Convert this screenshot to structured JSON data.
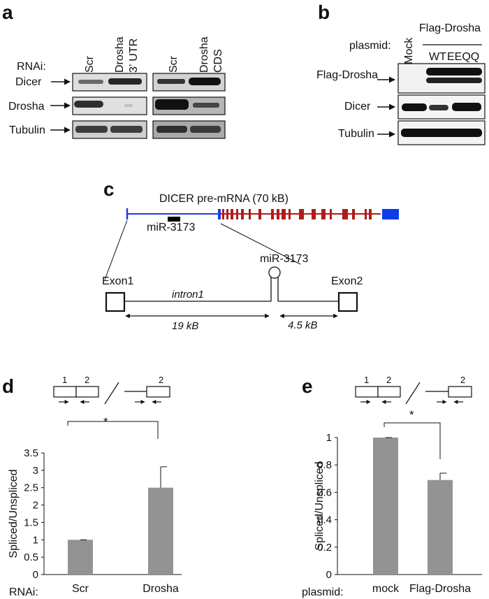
{
  "panel_a": {
    "letter": "a",
    "rnai_label": "RNAi:",
    "lanes": [
      "Scr",
      "Drosha",
      "3’ UTR",
      "Scr",
      "Drosha",
      "CDS"
    ],
    "rows": [
      "Dicer",
      "Drosha",
      "Tubulin"
    ]
  },
  "panel_b": {
    "letter": "b",
    "plasmid_label": "plasmid:",
    "mock_label": "Mock",
    "group_label": "Flag-Drosha",
    "lanes": [
      "WT",
      "EEQQ"
    ],
    "rows": [
      "Flag-Drosha",
      "Dicer",
      "Tubulin"
    ]
  },
  "panel_c": {
    "letter": "c",
    "gene_title": "DICER pre-mRNA (70 kB)",
    "mirna_small": "miR-3173",
    "mirna_big": "miR-3173",
    "exon1": "Exon1",
    "exon2": "Exon2",
    "intron": "intron1",
    "dist1": "19 kB",
    "dist2": "4.5 kB"
  },
  "panel_d": {
    "letter": "d",
    "axis_prefix": "RNAi:",
    "primer_labels": [
      "1",
      "2",
      "2"
    ],
    "significance": "*"
  },
  "panel_e": {
    "letter": "e",
    "axis_prefix": "plasmid:",
    "primer_labels": [
      "1",
      "2",
      "2"
    ],
    "significance": "*"
  },
  "chart_data": [
    {
      "type": "bar",
      "categories": [
        "Scr",
        "Drosha"
      ],
      "values": [
        1.0,
        2.5
      ],
      "errors": [
        0.0,
        0.6
      ],
      "ylabel": "Spliced/Unspliced",
      "ylim": [
        0,
        3.5
      ],
      "yticks": [
        "0",
        "0.5",
        "1",
        "1.5",
        "2",
        "2.5",
        "3",
        "3.5"
      ],
      "bar_color": "#939393"
    },
    {
      "type": "bar",
      "categories": [
        "mock",
        "Flag-Drosha"
      ],
      "values": [
        1.0,
        0.69
      ],
      "errors": [
        0.0,
        0.05
      ],
      "ylabel": "Spliced/Unspliced",
      "ylim": [
        0,
        1
      ],
      "yticks": [
        "0",
        "0.2",
        "0.4",
        "0.6",
        "0.8",
        "1"
      ],
      "bar_color": "#939393"
    }
  ]
}
